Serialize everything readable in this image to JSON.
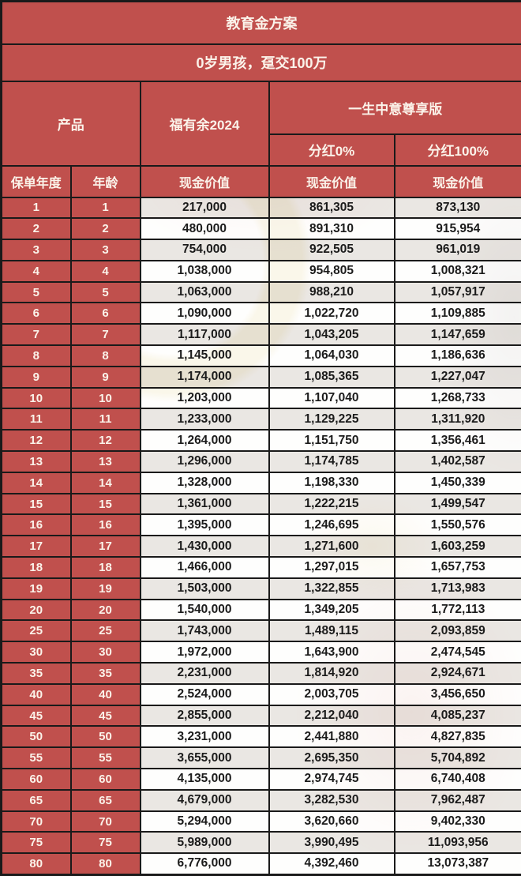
{
  "title": "教育金方案",
  "subtitle": "0岁男孩，趸交100万",
  "colors": {
    "red": "#c0504d",
    "border": "#1a1a1a",
    "header_text": "#fbf3ea",
    "data_text": "#1b1b1b"
  },
  "table": {
    "product_header": "产品",
    "product_1": "福有余2024",
    "product_2": "一生中意尊享版",
    "dividend_0": "分红0%",
    "dividend_100": "分红100%",
    "col_policy_year": "保单年度",
    "col_age": "年龄",
    "col_cash_value": "现金价值",
    "rows": [
      {
        "year": "1",
        "age": "1",
        "values": [
          "217,000",
          "861,305",
          "873,130"
        ]
      },
      {
        "year": "2",
        "age": "2",
        "values": [
          "480,000",
          "891,310",
          "915,954"
        ]
      },
      {
        "year": "3",
        "age": "3",
        "values": [
          "754,000",
          "922,505",
          "961,019"
        ]
      },
      {
        "year": "4",
        "age": "4",
        "values": [
          "1,038,000",
          "954,805",
          "1,008,321"
        ]
      },
      {
        "year": "5",
        "age": "5",
        "values": [
          "1,063,000",
          "988,210",
          "1,057,917"
        ]
      },
      {
        "year": "6",
        "age": "6",
        "values": [
          "1,090,000",
          "1,022,720",
          "1,109,885"
        ]
      },
      {
        "year": "7",
        "age": "7",
        "values": [
          "1,117,000",
          "1,043,205",
          "1,147,659"
        ]
      },
      {
        "year": "8",
        "age": "8",
        "values": [
          "1,145,000",
          "1,064,030",
          "1,186,636"
        ]
      },
      {
        "year": "9",
        "age": "9",
        "values": [
          "1,174,000",
          "1,085,365",
          "1,227,047"
        ]
      },
      {
        "year": "10",
        "age": "10",
        "values": [
          "1,203,000",
          "1,107,040",
          "1,268,733"
        ]
      },
      {
        "year": "11",
        "age": "11",
        "values": [
          "1,233,000",
          "1,129,225",
          "1,311,920"
        ]
      },
      {
        "year": "12",
        "age": "12",
        "values": [
          "1,264,000",
          "1,151,750",
          "1,356,461"
        ]
      },
      {
        "year": "13",
        "age": "13",
        "values": [
          "1,296,000",
          "1,174,785",
          "1,402,587"
        ]
      },
      {
        "year": "14",
        "age": "14",
        "values": [
          "1,328,000",
          "1,198,330",
          "1,450,339"
        ]
      },
      {
        "year": "15",
        "age": "15",
        "values": [
          "1,361,000",
          "1,222,215",
          "1,499,547"
        ]
      },
      {
        "year": "16",
        "age": "16",
        "values": [
          "1,395,000",
          "1,246,695",
          "1,550,576"
        ]
      },
      {
        "year": "17",
        "age": "17",
        "values": [
          "1,430,000",
          "1,271,600",
          "1,603,259"
        ]
      },
      {
        "year": "18",
        "age": "18",
        "values": [
          "1,466,000",
          "1,297,015",
          "1,657,753"
        ]
      },
      {
        "year": "19",
        "age": "19",
        "values": [
          "1,503,000",
          "1,322,855",
          "1,713,983"
        ]
      },
      {
        "year": "20",
        "age": "20",
        "values": [
          "1,540,000",
          "1,349,205",
          "1,772,113"
        ]
      },
      {
        "year": "25",
        "age": "25",
        "values": [
          "1,743,000",
          "1,489,115",
          "2,093,859"
        ]
      },
      {
        "year": "30",
        "age": "30",
        "values": [
          "1,972,000",
          "1,643,900",
          "2,474,545"
        ]
      },
      {
        "year": "35",
        "age": "35",
        "values": [
          "2,231,000",
          "1,814,920",
          "2,924,671"
        ]
      },
      {
        "year": "40",
        "age": "40",
        "values": [
          "2,524,000",
          "2,003,705",
          "3,456,650"
        ]
      },
      {
        "year": "45",
        "age": "45",
        "values": [
          "2,855,000",
          "2,212,040",
          "4,085,237"
        ]
      },
      {
        "year": "50",
        "age": "50",
        "values": [
          "3,231,000",
          "2,441,880",
          "4,827,835"
        ]
      },
      {
        "year": "55",
        "age": "55",
        "values": [
          "3,655,000",
          "2,695,350",
          "5,704,892"
        ]
      },
      {
        "year": "60",
        "age": "60",
        "values": [
          "4,135,000",
          "2,974,745",
          "6,740,408"
        ]
      },
      {
        "year": "65",
        "age": "65",
        "values": [
          "4,679,000",
          "3,282,530",
          "7,962,487"
        ]
      },
      {
        "year": "70",
        "age": "70",
        "values": [
          "5,294,000",
          "3,620,660",
          "9,402,330"
        ]
      },
      {
        "year": "75",
        "age": "75",
        "values": [
          "5,989,000",
          "3,990,495",
          "11,093,956"
        ]
      },
      {
        "year": "80",
        "age": "80",
        "values": [
          "6,776,000",
          "4,392,460",
          "13,073,387"
        ]
      }
    ]
  }
}
